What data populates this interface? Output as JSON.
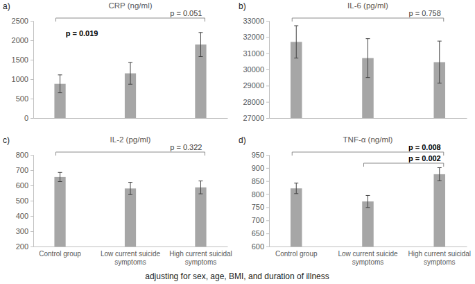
{
  "caption": "adjusting for sex, age, BMI, and duration of illness",
  "chart_data": [
    {
      "type": "bar",
      "panel_label": "a)",
      "title": "CRP (ng/ml)",
      "categories": [
        "Control group",
        "Low current suicide symptoms",
        "High current suicidal symptoms"
      ],
      "values": [
        880,
        1150,
        1890
      ],
      "errors": [
        230,
        280,
        310
      ],
      "color": "#a6a6a6",
      "ylim": [
        0,
        2500
      ],
      "yticks": [
        0,
        500,
        1000,
        1500,
        2000,
        2500
      ],
      "tick_labels": "y",
      "comparisons": [
        {
          "from": 0,
          "to": 2,
          "label": "p = 0.051",
          "bold": false
        }
      ],
      "annotations": [
        {
          "text": "p = 0.019",
          "bold": true
        }
      ]
    },
    {
      "type": "bar",
      "panel_label": "b)",
      "title": "IL-6 (pg/ml)",
      "categories": [
        "Control group",
        "Low current suicide symptoms",
        "High current suicidal symptoms"
      ],
      "values": [
        31700,
        30700,
        30450
      ],
      "errors": [
        1000,
        1200,
        1300
      ],
      "color": "#a6a6a6",
      "ylim": [
        27000,
        33000
      ],
      "yticks": [
        27000,
        28000,
        29000,
        30000,
        31000,
        32000,
        33000
      ],
      "tick_labels": "y",
      "comparisons": [
        {
          "from": 0,
          "to": 2,
          "label": "p = 0.758",
          "bold": false
        }
      ]
    },
    {
      "type": "bar",
      "panel_label": "c)",
      "title": "IL-2 (pg/ml)",
      "categories": [
        "Control group",
        "Low current suicide symptoms",
        "High current suicidal symptoms"
      ],
      "values": [
        655,
        580,
        587
      ],
      "errors": [
        30,
        40,
        42
      ],
      "color": "#a6a6a6",
      "ylim": [
        200,
        800
      ],
      "yticks": [
        200,
        300,
        400,
        500,
        600,
        700,
        800
      ],
      "comparisons": [
        {
          "from": 0,
          "to": 2,
          "label": "p = 0.322",
          "bold": false
        }
      ]
    },
    {
      "type": "bar",
      "panel_label": "d)",
      "title": "TNF-α (ng/ml)",
      "categories": [
        "Control group",
        "Low current suicide symptoms",
        "High current suicidal symptoms"
      ],
      "values": [
        822,
        772,
        876
      ],
      "errors": [
        20,
        23,
        25
      ],
      "color": "#a6a6a6",
      "ylim": [
        600,
        950
      ],
      "yticks": [
        600,
        650,
        700,
        750,
        800,
        850,
        900,
        950
      ],
      "comparisons": [
        {
          "from": 0,
          "to": 2,
          "label": "p = 0.008",
          "bold": true
        },
        {
          "from": 1,
          "to": 2,
          "label": "p = 0.002",
          "bold": true
        }
      ]
    }
  ]
}
